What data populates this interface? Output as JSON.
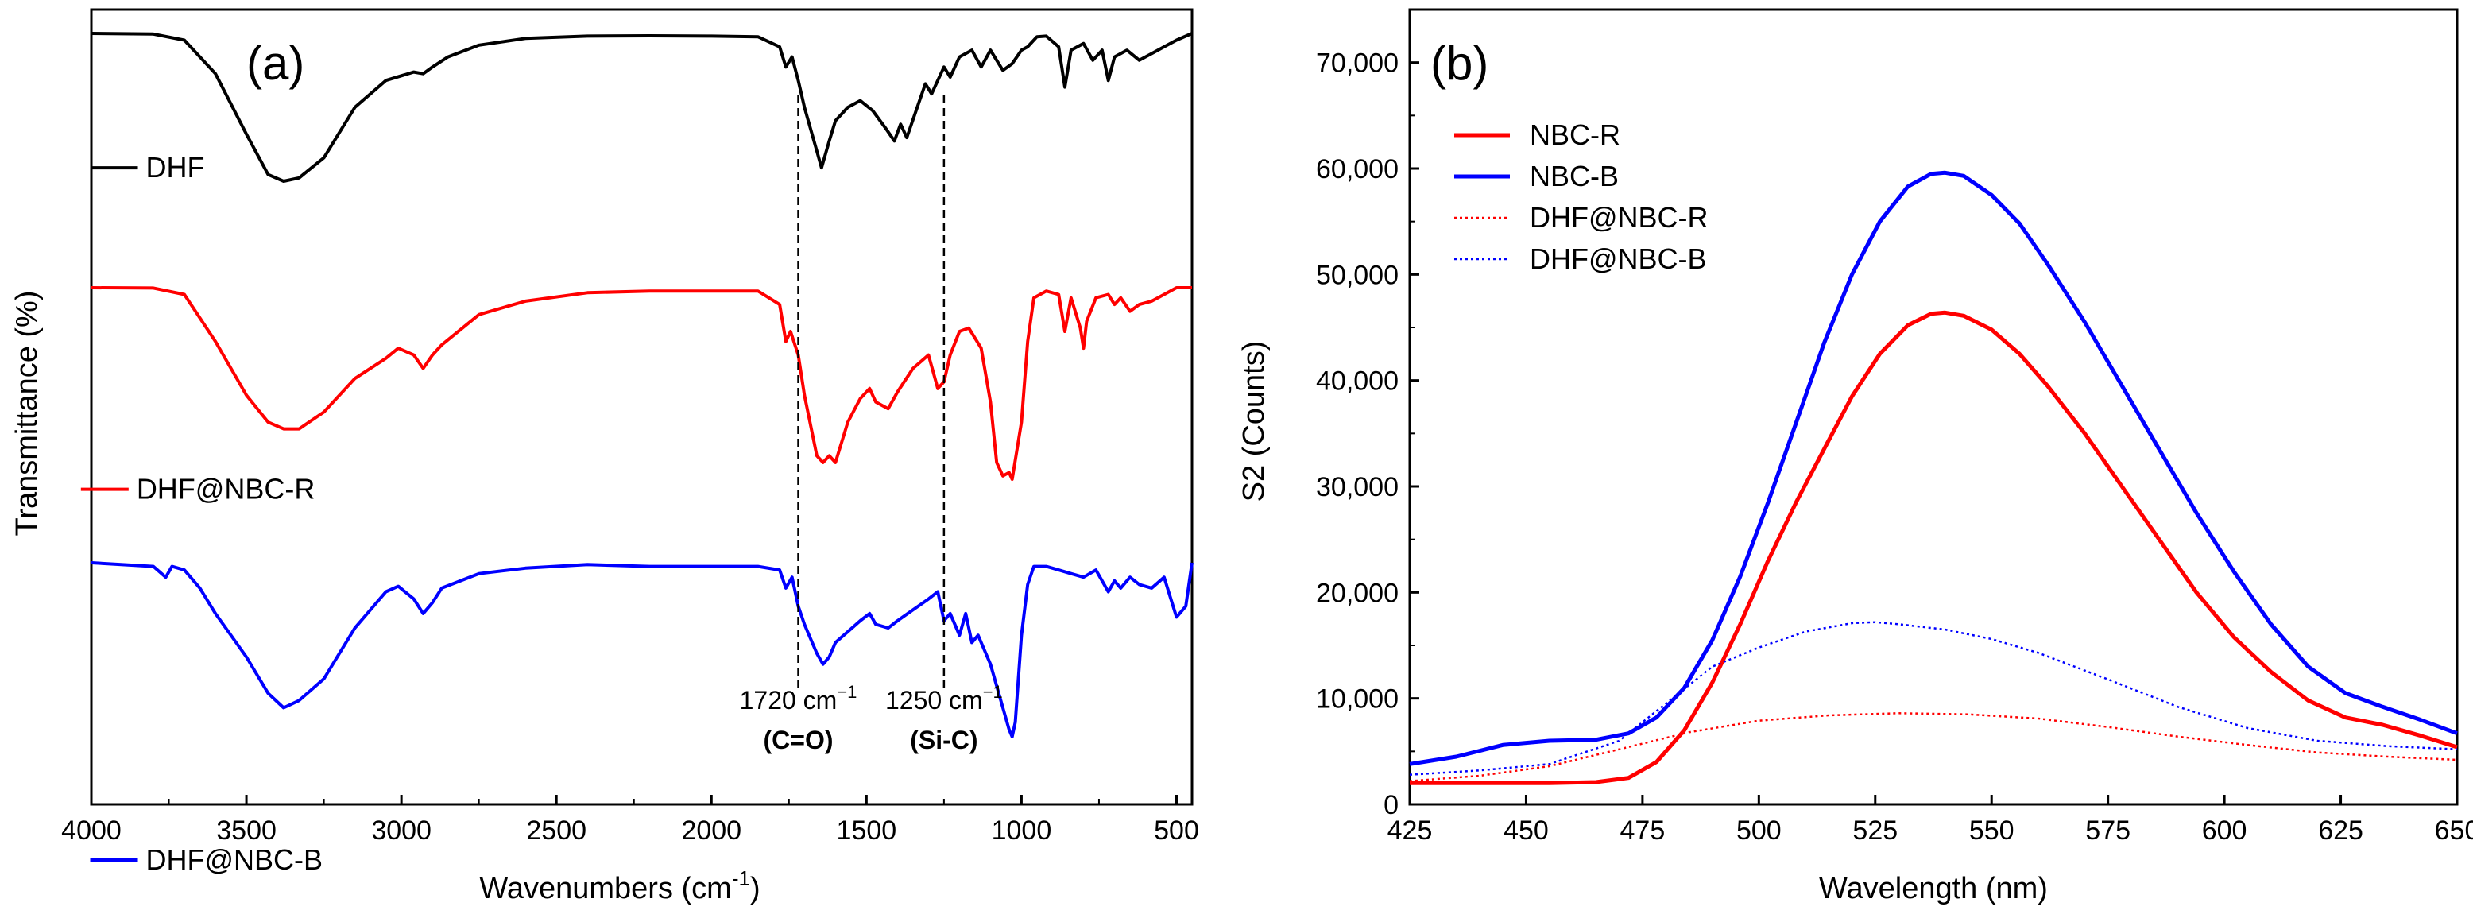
{
  "chart_data": [
    {
      "type": "line",
      "panel_label": "(a)",
      "xlabel": "Wavenumbers (cm",
      "xlabel_sup": "-1",
      "xlabel_end": ")",
      "ylabel": "Transmittance (%)",
      "xlim": [
        4000,
        450
      ],
      "x_reversed": true,
      "xticks": [
        4000,
        3500,
        3000,
        2500,
        2000,
        1500,
        1000,
        500
      ],
      "series": [
        {
          "name": "DHF",
          "color": "#000000",
          "x": [
            4000,
            3800,
            3700,
            3600,
            3500,
            3430,
            3380,
            3330,
            3250,
            3150,
            3050,
            2960,
            2930,
            2900,
            2850,
            2750,
            2600,
            2400,
            2200,
            2000,
            1850,
            1780,
            1760,
            1740,
            1720,
            1700,
            1660,
            1645,
            1620,
            1600,
            1560,
            1520,
            1480,
            1440,
            1410,
            1390,
            1370,
            1340,
            1310,
            1290,
            1270,
            1250,
            1230,
            1200,
            1160,
            1130,
            1100,
            1080,
            1060,
            1030,
            1000,
            980,
            950,
            920,
            880,
            860,
            840,
            800,
            770,
            740,
            720,
            700,
            660,
            620,
            580,
            540,
            500,
            450
          ],
          "values": [
            100,
            99.8,
            98,
            88,
            70,
            58,
            56,
            57,
            63,
            78,
            86,
            88.5,
            88,
            90,
            93,
            96.5,
            98.5,
            99.2,
            99.3,
            99.2,
            99,
            96,
            90,
            93,
            86,
            78,
            65,
            60,
            68,
            74,
            78,
            80,
            77,
            72,
            68,
            73,
            69,
            77,
            85,
            82,
            86,
            90,
            87,
            93,
            95,
            90,
            95,
            92,
            89,
            91,
            95,
            96,
            99,
            99.2,
            96,
            84,
            95,
            97,
            92,
            95,
            86,
            93,
            95,
            92,
            94,
            96,
            98,
            100
          ],
          "label_x": 3850,
          "label_y": 60
        },
        {
          "name": "DHF@NBC-R",
          "color": "#ff0000",
          "x": [
            4000,
            3800,
            3700,
            3600,
            3500,
            3430,
            3380,
            3330,
            3250,
            3150,
            3050,
            3010,
            2960,
            2930,
            2900,
            2870,
            2750,
            2600,
            2400,
            2200,
            2000,
            1850,
            1780,
            1760,
            1745,
            1720,
            1700,
            1660,
            1640,
            1620,
            1600,
            1560,
            1520,
            1490,
            1470,
            1430,
            1400,
            1350,
            1300,
            1270,
            1250,
            1230,
            1200,
            1170,
            1130,
            1100,
            1080,
            1060,
            1040,
            1030,
            1000,
            980,
            960,
            920,
            880,
            860,
            840,
            810,
            800,
            790,
            760,
            720,
            700,
            680,
            650,
            620,
            580,
            540,
            500,
            450
          ],
          "values": [
            100,
            99.9,
            98,
            84,
            68,
            60,
            58,
            58,
            63,
            73,
            79,
            82,
            80,
            76,
            80,
            83,
            92,
            96,
            98.5,
            99,
            99,
            99,
            95,
            84,
            87,
            80,
            68,
            50,
            48,
            50,
            48,
            60,
            67,
            70,
            66,
            64,
            69,
            76,
            80,
            70,
            72,
            80,
            87,
            88,
            82,
            66,
            48,
            44,
            45,
            43,
            60,
            84,
            97,
            99,
            98,
            87,
            97,
            88,
            82,
            90,
            97,
            98,
            95,
            97,
            93,
            95,
            96,
            98,
            100,
            100
          ],
          "label_x": 3880,
          "label_y": 40
        },
        {
          "name": "DHF@NBC-B",
          "color": "#0000ff",
          "x": [
            4000,
            3800,
            3760,
            3740,
            3700,
            3650,
            3600,
            3500,
            3430,
            3380,
            3330,
            3250,
            3150,
            3050,
            3010,
            2960,
            2930,
            2900,
            2870,
            2750,
            2600,
            2400,
            2200,
            2000,
            1850,
            1780,
            1760,
            1740,
            1720,
            1700,
            1660,
            1640,
            1620,
            1600,
            1560,
            1520,
            1490,
            1470,
            1430,
            1400,
            1350,
            1300,
            1270,
            1250,
            1230,
            1200,
            1180,
            1160,
            1140,
            1120,
            1100,
            1080,
            1060,
            1040,
            1030,
            1020,
            1000,
            980,
            960,
            920,
            880,
            840,
            800,
            760,
            720,
            700,
            680,
            650,
            620,
            580,
            540,
            500,
            470,
            450
          ],
          "values": [
            100,
            99,
            96,
            99,
            98,
            93,
            86,
            74,
            64,
            60,
            62,
            68,
            82,
            92,
            93.5,
            90,
            86,
            89,
            93,
            97,
            98.5,
            99.5,
            99,
            99,
            99,
            98,
            93,
            96,
            88,
            83,
            75,
            72,
            74,
            78,
            81,
            84,
            86,
            83,
            82,
            84,
            87,
            90,
            92,
            84,
            86,
            80,
            86,
            78,
            80,
            76,
            72,
            66,
            60,
            54,
            52,
            56,
            80,
            94,
            99,
            99,
            98,
            97,
            96,
            98,
            92,
            95,
            93,
            96,
            94,
            93,
            96,
            85,
            88,
            100
          ],
          "label_x": 3850,
          "label_y": 18
        }
      ],
      "annotations": [
        {
          "x": 1720,
          "label": "1720 cm",
          "sup": "−1",
          "bond": "(C=O)"
        },
        {
          "x": 1250,
          "label": "1250 cm",
          "sup": "−1",
          "bond": "(Si-C)"
        }
      ]
    },
    {
      "type": "line",
      "panel_label": "(b)",
      "xlabel": "Wavelength (nm)",
      "ylabel": "S2 (Counts)",
      "xlim": [
        425,
        650
      ],
      "ylim": [
        0,
        75000
      ],
      "xticks": [
        425,
        450,
        475,
        500,
        525,
        550,
        575,
        600,
        625,
        650
      ],
      "xtick_labels": [
        "425",
        "450",
        "475",
        "500",
        "525",
        "550",
        "575",
        "600",
        "625",
        "650"
      ],
      "yticks": [
        0,
        10000,
        20000,
        30000,
        40000,
        50000,
        60000,
        70000
      ],
      "ytick_labels": [
        "0",
        "10,000",
        "20,000",
        "30,000",
        "40,000",
        "50,000",
        "60,000",
        "70,000"
      ],
      "series": [
        {
          "name": "NBC-R",
          "color": "#ff0000",
          "style": "solid",
          "x": [
            425,
            440,
            455,
            465,
            472,
            478,
            484,
            490,
            496,
            502,
            508,
            514,
            520,
            526,
            532,
            537,
            540,
            544,
            550,
            556,
            562,
            570,
            578,
            586,
            594,
            602,
            610,
            618,
            626,
            634,
            642,
            650
          ],
          "values": [
            2000,
            2000,
            2000,
            2100,
            2500,
            4000,
            7000,
            11500,
            17000,
            23000,
            28500,
            33500,
            38500,
            42500,
            45200,
            46300,
            46400,
            46100,
            44800,
            42500,
            39500,
            35000,
            30000,
            25000,
            20000,
            15800,
            12500,
            9800,
            8200,
            7500,
            6500,
            5400
          ]
        },
        {
          "name": "NBC-B",
          "color": "#0000ff",
          "style": "solid",
          "x": [
            425,
            435,
            445,
            455,
            465,
            472,
            478,
            484,
            490,
            496,
            502,
            508,
            514,
            520,
            526,
            532,
            537,
            540,
            544,
            550,
            556,
            562,
            570,
            578,
            586,
            594,
            602,
            610,
            618,
            626,
            634,
            642,
            650
          ],
          "values": [
            3800,
            4500,
            5600,
            6000,
            6100,
            6700,
            8200,
            11000,
            15500,
            21500,
            28500,
            36000,
            43500,
            50000,
            55000,
            58300,
            59500,
            59600,
            59300,
            57500,
            54800,
            51000,
            45500,
            39500,
            33500,
            27500,
            22000,
            17000,
            13000,
            10500,
            9200,
            8000,
            6700
          ]
        },
        {
          "name": "DHF@NBC-R",
          "color": "#ff0000",
          "style": "dotted",
          "x": [
            425,
            440,
            455,
            470,
            485,
            500,
            515,
            530,
            545,
            560,
            575,
            590,
            605,
            620,
            635,
            650
          ],
          "values": [
            2200,
            2700,
            3600,
            5200,
            6800,
            7900,
            8400,
            8600,
            8500,
            8100,
            7300,
            6400,
            5600,
            4900,
            4500,
            4200
          ]
        },
        {
          "name": "DHF@NBC-B",
          "color": "#0000ff",
          "style": "dotted",
          "x": [
            425,
            440,
            455,
            470,
            480,
            490,
            500,
            510,
            520,
            525,
            530,
            540,
            550,
            560,
            575,
            590,
            605,
            620,
            635,
            650
          ],
          "values": [
            2800,
            3200,
            3800,
            6000,
            9500,
            13000,
            14800,
            16300,
            17100,
            17200,
            17000,
            16500,
            15600,
            14300,
            11800,
            9200,
            7200,
            6000,
            5500,
            5200
          ]
        }
      ]
    }
  ]
}
